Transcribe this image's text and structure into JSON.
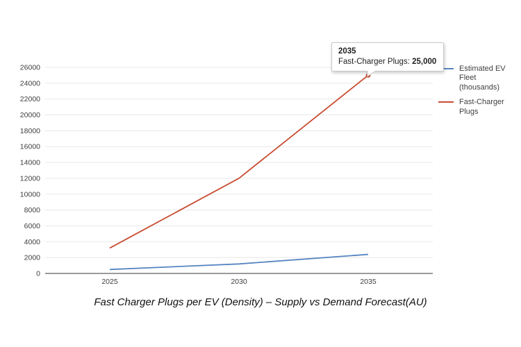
{
  "chart_data": {
    "type": "line",
    "x": [
      "2025",
      "2030",
      "2035"
    ],
    "series": [
      {
        "name": "Estimated EV Fleet (thousands)",
        "values": [
          500,
          1200,
          2400
        ],
        "color": "#5585c0"
      },
      {
        "name": "Fast-Charger Plugs",
        "values": [
          3200,
          12000,
          25000
        ],
        "color": "#c84b2f"
      }
    ],
    "title": "Fast Charger Plugs per EV (Density) – Supply vs Demand Forecast(AU)",
    "xlabel": "",
    "ylabel": "",
    "ylim": [
      0,
      26000
    ],
    "ytick_step": 2000,
    "grid": true,
    "legend_position": "right",
    "marker": {
      "series_index": 1,
      "x_index": 2
    }
  },
  "title": "Fast Charger Plugs per EV (Density) – Supply vs Demand Forecast(AU)",
  "tooltip": {
    "title": "2035",
    "series_label": "Fast-Charger Plugs:",
    "value": "25,000"
  },
  "legend": {
    "items": [
      {
        "label": "Estimated EV Fleet (thousands)"
      },
      {
        "label": "Fast-Charger Plugs"
      }
    ]
  },
  "colors": {
    "ev_fleet_line": "#5585c0",
    "plugs_line": "#c84b2f",
    "gridline": "#e8e8e8",
    "axis_line": "#9b9b9b",
    "tick_text": "#3d3d3d"
  }
}
